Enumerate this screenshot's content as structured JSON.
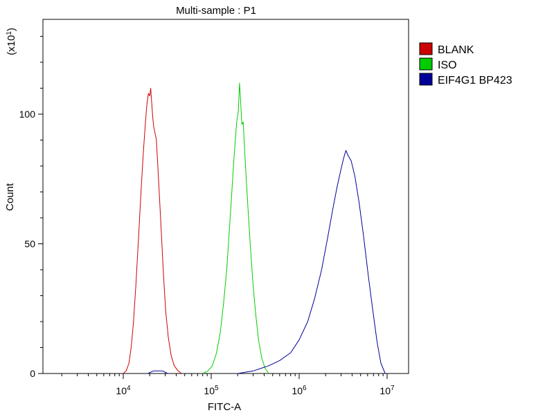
{
  "chart_data": {
    "type": "line",
    "title": "Multi-sample : P1",
    "xlabel": "FITC-A",
    "ylabel": "Count",
    "y_multiplier": "(x10",
    "y_multiplier_exp": "1",
    "y_multiplier_close": ")",
    "x_scale": "log",
    "xlim": [
      10000,
      10000000
    ],
    "ylim": [
      0,
      135
    ],
    "x_ticks": [
      {
        "value": 10000,
        "base": "10",
        "exp": "4"
      },
      {
        "value": 100000,
        "base": "10",
        "exp": "5"
      },
      {
        "value": 1000000,
        "base": "10",
        "exp": "6"
      },
      {
        "value": 10000000,
        "base": "10",
        "exp": "7"
      }
    ],
    "y_ticks": [
      {
        "value": 0,
        "label": "0"
      },
      {
        "value": 50,
        "label": "50"
      },
      {
        "value": 100,
        "label": "100"
      }
    ],
    "legend_position": "top-right",
    "series": [
      {
        "name": "BLANK",
        "color": "#cc0000",
        "x": [
          10000,
          10800,
          11600,
          12300,
          13000,
          13900,
          14900,
          15900,
          16900,
          17800,
          18600,
          19300,
          20000,
          20500,
          21000,
          21600,
          22200,
          22900,
          23800,
          24700,
          25900,
          27300,
          28800,
          30400,
          32500,
          35000,
          38000,
          42000,
          46000
        ],
        "y": [
          0,
          1,
          4,
          10,
          19,
          34,
          52,
          70,
          85,
          96,
          104,
          108,
          107,
          110,
          105,
          99,
          95,
          93,
          90,
          80,
          67,
          52,
          37,
          24,
          14,
          7,
          3,
          1,
          0
        ]
      },
      {
        "name": "ISO",
        "color": "#00cc00",
        "x": [
          80000,
          92000,
          103000,
          115000,
          127000,
          138000,
          150000,
          160000,
          170000,
          179000,
          187000,
          195000,
          203000,
          210000,
          216000,
          223000,
          231000,
          240000,
          251000,
          264000,
          280000,
          298000,
          320000,
          345000,
          375000,
          410000,
          450000
        ],
        "y": [
          0,
          1,
          3,
          8,
          16,
          27,
          40,
          54,
          68,
          80,
          89,
          97,
          101,
          112,
          105,
          96,
          97,
          86,
          74,
          62,
          48,
          35,
          23,
          13,
          6,
          2,
          0
        ]
      },
      {
        "name": "EIF4G1 BP423",
        "color": "#000099",
        "x": [
          200000,
          300000,
          450000,
          600000,
          800000,
          1000000,
          1250000,
          1500000,
          1800000,
          2100000,
          2400000,
          2700000,
          3000000,
          3200000,
          3400000,
          3600000,
          3900000,
          4300000,
          4800000,
          5400000,
          6100000,
          6900000,
          7700000,
          8500000,
          9500000
        ],
        "y": [
          0,
          1,
          3,
          5,
          8,
          13,
          20,
          29,
          40,
          52,
          63,
          72,
          79,
          83,
          86,
          84,
          82,
          76,
          66,
          53,
          38,
          24,
          12,
          4,
          0
        ]
      }
    ],
    "noise_series": [
      {
        "color": "#000099",
        "x": [
          19000,
          22000,
          25000,
          28000,
          32000
        ],
        "y": [
          0,
          1,
          1,
          1,
          0
        ]
      }
    ]
  }
}
